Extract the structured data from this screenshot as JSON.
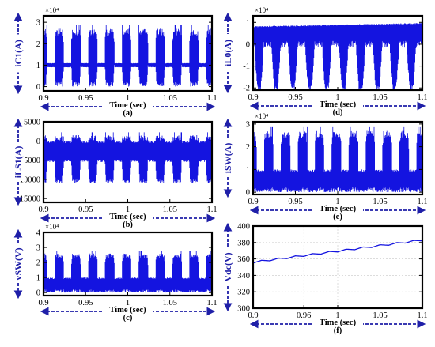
{
  "colors": {
    "signal": "#1414e0",
    "arrow": "#1f1fa8",
    "frame": "#000000",
    "grid": "#c8c8c8"
  },
  "chart_data": [
    {
      "id": "a",
      "type": "line",
      "label": "(a)",
      "ylabel": "iC1(A)",
      "xlabel": "Time (sec)",
      "xlim": [
        0.9,
        1.1
      ],
      "ylim": [
        -0.2,
        3.3
      ],
      "multiplier": "×10⁴",
      "xticks": [
        0.9,
        0.95,
        1,
        1.05,
        1.1
      ],
      "xtick_labels": [
        "0.9",
        "0.95",
        "1",
        "1.05",
        "1.1"
      ],
      "yticks": [
        0,
        1,
        2,
        3
      ],
      "ytick_labels": [
        "0",
        "1",
        "2",
        "3"
      ],
      "grid": false,
      "series": [
        {
          "envelope": "bursts",
          "period": 0.02,
          "on_fraction": 0.55,
          "burst_range": [
            0.0,
            2.7
          ],
          "gap_range": [
            0.9,
            1.1
          ],
          "baseline": 1.0
        }
      ]
    },
    {
      "id": "d",
      "type": "line",
      "label": "(d)",
      "ylabel": "iL0(A)",
      "xlabel": "Time (sec)",
      "xlim": [
        0.9,
        1.1
      ],
      "ylim": [
        -2.1,
        1.3
      ],
      "multiplier": "×10⁴",
      "xticks": [
        0.9,
        0.95,
        1,
        1.05,
        1.1
      ],
      "xtick_labels": [
        "0.9",
        "0.95",
        "1",
        "1.05",
        "1.1"
      ],
      "yticks": [
        -2,
        -1,
        0,
        1
      ],
      "ytick_labels": [
        "-2",
        "-1",
        "0",
        "1"
      ],
      "grid": false,
      "series": [
        {
          "envelope": "dips",
          "period": 0.02,
          "on_fraction": 0.55,
          "top": [
            0.8,
            0.95
          ],
          "burst_min": -2.0,
          "gap_min": 0.0
        }
      ]
    },
    {
      "id": "b",
      "type": "line",
      "label": "(b)",
      "ylabel": "iLS1(A)",
      "xlabel": "Time (sec)",
      "xlim": [
        0.9,
        1.1
      ],
      "ylim": [
        -16000,
        5000
      ],
      "multiplier": "",
      "xticks": [
        0.9,
        0.95,
        1,
        1.05,
        1.1
      ],
      "xtick_labels": [
        "0.9",
        "0.95",
        "1",
        "1.05",
        "1.1"
      ],
      "yticks": [
        5000,
        0,
        -5000,
        -10000,
        -15000
      ],
      "ytick_labels": [
        "5000",
        "0",
        "-5000",
        "-10000",
        "-15000"
      ],
      "grid": false,
      "series": [
        {
          "envelope": "bursts",
          "period": 0.02,
          "on_fraction": 0.55,
          "burst_range": [
            -11000,
            1500
          ],
          "gap_range": [
            -5500,
            0
          ],
          "baseline": -2500
        }
      ]
    },
    {
      "id": "e",
      "type": "line",
      "label": "(e)",
      "ylabel": "iSW(A)",
      "xlabel": "Time (sec)",
      "xlim": [
        0.9,
        1.1
      ],
      "ylim": [
        -0.1,
        3.1
      ],
      "multiplier": "×10⁴",
      "xticks": [
        0.9,
        0.95,
        1,
        1.05,
        1.1
      ],
      "xtick_labels": [
        "0.9",
        "0.95",
        "1",
        "1.05",
        "1.1"
      ],
      "yticks": [
        0,
        1,
        2,
        3
      ],
      "ytick_labels": [
        "0",
        "1",
        "2",
        "3"
      ],
      "grid": false,
      "series": [
        {
          "envelope": "bursts",
          "period": 0.02,
          "on_fraction": 0.55,
          "burst_range": [
            0.0,
            2.7
          ],
          "gap_range": [
            0.0,
            1.0
          ],
          "baseline": 0.3
        }
      ]
    },
    {
      "id": "c",
      "type": "line",
      "label": "(c)",
      "ylabel": "vSW(V)",
      "xlabel": "Time (sec)",
      "xlim": [
        0.9,
        1.1
      ],
      "ylim": [
        -0.2,
        4.0
      ],
      "multiplier": "×10⁴",
      "xticks": [
        0.9,
        0.95,
        1,
        1.05,
        1.1
      ],
      "xtick_labels": [
        "0.9",
        "0.95",
        "1",
        "1.05",
        "1.1"
      ],
      "yticks": [
        0,
        1,
        2,
        3,
        4
      ],
      "ytick_labels": [
        "0",
        "1",
        "2",
        "3",
        "4"
      ],
      "grid": false,
      "series": [
        {
          "envelope": "bursts",
          "period": 0.02,
          "on_fraction": 0.55,
          "burst_range": [
            0.0,
            2.6
          ],
          "gap_range": [
            0.0,
            1.0
          ],
          "baseline": 0.3
        }
      ]
    },
    {
      "id": "f",
      "type": "line",
      "label": "(f)",
      "ylabel": "Vdc(V)",
      "xlabel": "Time (sec)",
      "xlim": [
        0.9,
        1.1
      ],
      "ylim": [
        300,
        400
      ],
      "multiplier": "",
      "xticks": [
        0.9,
        0.96,
        1,
        1.05,
        1.1
      ],
      "xtick_labels": [
        "0.9",
        "0.96",
        "1",
        "1.05",
        "1.1"
      ],
      "yticks": [
        300,
        320,
        340,
        360,
        380,
        400
      ],
      "ytick_labels": [
        "300",
        "320",
        "340",
        "360",
        "380",
        "400"
      ],
      "grid": true,
      "series": [
        {
          "smooth": true,
          "x_start": 0.9,
          "x_end": 1.1,
          "y_start": 356,
          "y_end": 383,
          "ripple": 2.0,
          "period": 0.02
        }
      ]
    }
  ]
}
